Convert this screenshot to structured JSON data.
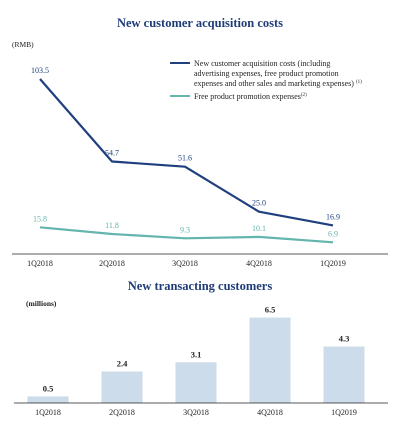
{
  "colors": {
    "title": "#1f3c78",
    "series1": "#1f3f7f",
    "series2": "#63b5ad",
    "bar": "#cddcea",
    "axis": "#222222",
    "text": "#222222"
  },
  "chart_data": [
    {
      "type": "line",
      "title": "New customer acquisition costs",
      "unit_label": "(RMB)",
      "categories": [
        "1Q2018",
        "2Q2018",
        "3Q2018",
        "4Q2018",
        "1Q2019"
      ],
      "ylim": [
        0,
        110
      ],
      "grid": false,
      "legend_position": "top-right",
      "series": [
        {
          "name": "New customer acquisition costs (including advertising expenses, free product promotion expenses and other sales and marketing expenses)",
          "footnote": "(1)",
          "values": [
            103.5,
            54.7,
            51.6,
            25.0,
            16.9
          ],
          "labels": [
            "103.5",
            "54.7",
            "51.6",
            "25.0",
            "16.9"
          ]
        },
        {
          "name": "Free product promotion expenses",
          "footnote": "(2)",
          "values": [
            15.8,
            11.8,
            9.3,
            10.1,
            6.9
          ],
          "labels": [
            "15.8",
            "11.8",
            "9.3",
            "10.1",
            "6.9"
          ]
        }
      ]
    },
    {
      "type": "bar",
      "title": "New transacting customers",
      "unit_label": "(millions)",
      "categories": [
        "1Q2018",
        "2Q2018",
        "3Q2018",
        "4Q2018",
        "1Q2019"
      ],
      "values": [
        0.5,
        2.4,
        3.1,
        6.5,
        4.3
      ],
      "labels": [
        "0.5",
        "2.4",
        "3.1",
        "6.5",
        "4.3"
      ],
      "ylim": [
        0,
        7
      ],
      "grid": false
    }
  ]
}
